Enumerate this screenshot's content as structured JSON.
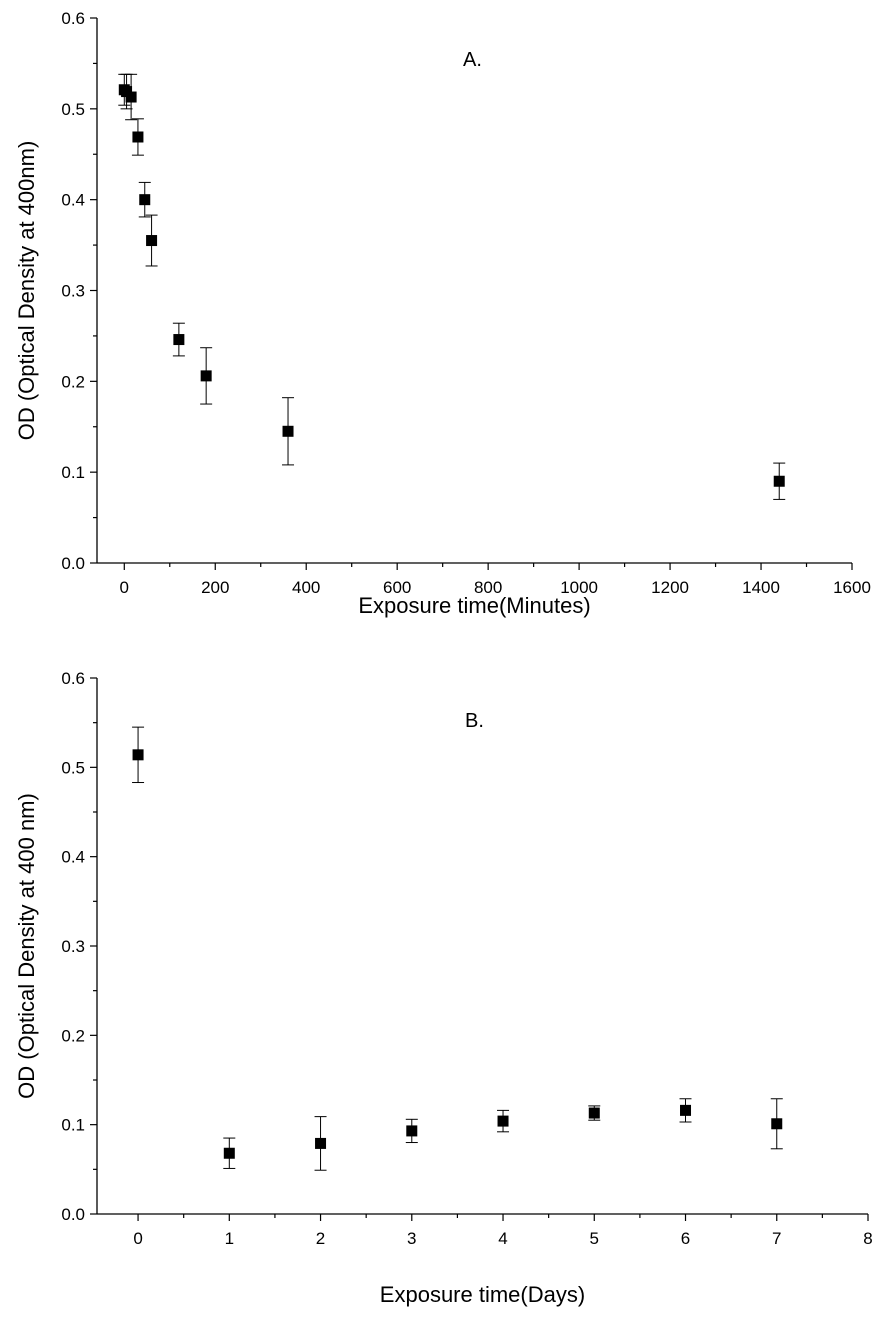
{
  "chart_data": [
    {
      "type": "scatter",
      "panel_label": "A.",
      "xlabel": "Exposure time(Minutes)",
      "ylabel": "OD (Optical Density at 400nm)",
      "xlim": [
        -60,
        1600
      ],
      "ylim": [
        0.0,
        0.6
      ],
      "xticks": [
        0,
        200,
        400,
        600,
        800,
        1000,
        1200,
        1400,
        1600
      ],
      "xtick_labels": [
        "0",
        "200",
        "400",
        "600",
        "800",
        "1000",
        "1200",
        "1400",
        "1600"
      ],
      "xminor": [
        100,
        300,
        500,
        700,
        900,
        1100,
        1300,
        1500
      ],
      "yticks": [
        0.0,
        0.1,
        0.2,
        0.3,
        0.4,
        0.5,
        0.6
      ],
      "ytick_labels": [
        "0.0",
        "0.1",
        "0.2",
        "0.3",
        "0.4",
        "0.5",
        "0.6"
      ],
      "yminor": [
        0.05,
        0.15,
        0.25,
        0.35,
        0.45,
        0.55
      ],
      "grid": false,
      "points": [
        {
          "x": 0,
          "y": 0.521,
          "err": 0.017
        },
        {
          "x": 5,
          "y": 0.519,
          "err": 0.019
        },
        {
          "x": 15,
          "y": 0.513,
          "err": 0.025
        },
        {
          "x": 30,
          "y": 0.469,
          "err": 0.02
        },
        {
          "x": 45,
          "y": 0.4,
          "err": 0.019
        },
        {
          "x": 60,
          "y": 0.355,
          "err": 0.028
        },
        {
          "x": 120,
          "y": 0.246,
          "err": 0.018
        },
        {
          "x": 180,
          "y": 0.206,
          "err": 0.031
        },
        {
          "x": 360,
          "y": 0.145,
          "err": 0.037
        },
        {
          "x": 1440,
          "y": 0.09,
          "err": 0.02
        }
      ]
    },
    {
      "type": "scatter",
      "panel_label": "B.",
      "xlabel": "Exposure time(Days)",
      "ylabel": "OD (Optical Density at 400 nm)",
      "xlim": [
        -0.45,
        8
      ],
      "ylim": [
        0.0,
        0.6
      ],
      "xticks": [
        0,
        1,
        2,
        3,
        4,
        5,
        6,
        7,
        8
      ],
      "xtick_labels": [
        "0",
        "1",
        "2",
        "3",
        "4",
        "5",
        "6",
        "7",
        "8"
      ],
      "xminor": [
        0.5,
        1.5,
        2.5,
        3.5,
        4.5,
        5.5,
        6.5,
        7.5
      ],
      "yticks": [
        0.0,
        0.1,
        0.2,
        0.3,
        0.4,
        0.5,
        0.6
      ],
      "ytick_labels": [
        "0.0",
        "0.1",
        "0.2",
        "0.3",
        "0.4",
        "0.5",
        "0.6"
      ],
      "yminor": [
        0.05,
        0.15,
        0.25,
        0.35,
        0.45,
        0.55
      ],
      "grid": false,
      "points": [
        {
          "x": 0,
          "y": 0.514,
          "err": 0.031
        },
        {
          "x": 1,
          "y": 0.068,
          "err": 0.017
        },
        {
          "x": 2,
          "y": 0.079,
          "err": 0.03
        },
        {
          "x": 3,
          "y": 0.093,
          "err": 0.013
        },
        {
          "x": 4,
          "y": 0.104,
          "err": 0.012
        },
        {
          "x": 5,
          "y": 0.113,
          "err": 0.008
        },
        {
          "x": 6,
          "y": 0.116,
          "err": 0.013
        },
        {
          "x": 7,
          "y": 0.101,
          "err": 0.028
        }
      ]
    }
  ]
}
